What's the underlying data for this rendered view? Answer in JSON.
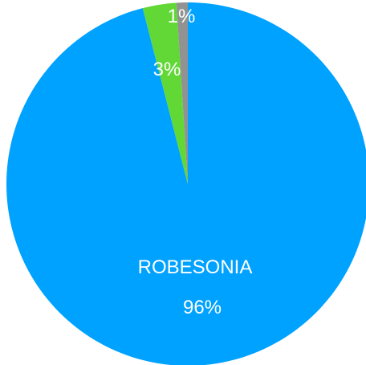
{
  "chart_data": {
    "type": "pie",
    "title": "",
    "slices": [
      {
        "name": "ROBESONIA",
        "value": 96,
        "pct_label": "96%",
        "color": "#00A2FF"
      },
      {
        "name": "",
        "value": 3,
        "pct_label": "3%",
        "color": "#61D836"
      },
      {
        "name": "",
        "value": 1,
        "pct_label": "1%",
        "color": "#929292"
      }
    ],
    "legend": "none"
  }
}
